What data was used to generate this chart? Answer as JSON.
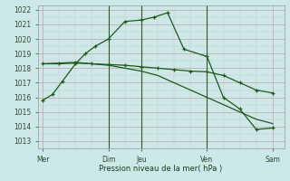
{
  "xlabel": "Pression niveau de la mer( hPa )",
  "background_color": "#cce8e8",
  "grid_color_major": "#c8a0a0",
  "grid_color_minor": "#dcc0c0",
  "line_color": "#1a5c1a",
  "ylim": [
    1012.5,
    1022.3
  ],
  "yticks": [
    1013,
    1014,
    1015,
    1016,
    1017,
    1018,
    1019,
    1020,
    1021,
    1022
  ],
  "xtick_labels": [
    "Mer",
    "",
    "Dim",
    "Jeu",
    "",
    "Ven",
    "",
    "Sam"
  ],
  "xtick_positions": [
    0,
    1,
    2,
    3,
    4,
    5,
    6,
    7
  ],
  "day_labels": [
    "Mer",
    "Dim",
    "Jeu",
    "Ven",
    "Sam"
  ],
  "day_positions": [
    0,
    2,
    3,
    5,
    7
  ],
  "vline_positions": [
    2,
    3,
    5
  ],
  "vline_color": "#2d5a2d",
  "line1_x": [
    0,
    0.3,
    0.6,
    1.0,
    1.3,
    1.6,
    2.0,
    2.5,
    3.0,
    3.4,
    3.8,
    4.3,
    5.0,
    5.5,
    6.0,
    6.5,
    7.0
  ],
  "line1_y": [
    1015.8,
    1016.2,
    1017.1,
    1018.3,
    1019.0,
    1019.5,
    1020.0,
    1021.2,
    1021.3,
    1021.5,
    1021.8,
    1019.3,
    1018.8,
    1016.0,
    1015.2,
    1013.8,
    1013.9
  ],
  "line2_x": [
    0,
    0.5,
    1.0,
    1.5,
    2.0,
    2.5,
    3.0,
    3.5,
    4.0,
    4.5,
    5.0,
    5.5,
    6.0,
    6.5,
    7.0
  ],
  "line2_y": [
    1018.3,
    1018.35,
    1018.4,
    1018.3,
    1018.25,
    1018.2,
    1018.1,
    1018.0,
    1017.9,
    1017.8,
    1017.75,
    1017.5,
    1017.0,
    1016.5,
    1016.3
  ],
  "line3_x": [
    0,
    0.5,
    1.0,
    1.5,
    2.0,
    2.5,
    3.0,
    3.5,
    4.0,
    4.5,
    5.0,
    5.5,
    6.0,
    6.5,
    7.0
  ],
  "line3_y": [
    1018.3,
    1018.3,
    1018.35,
    1018.3,
    1018.2,
    1018.0,
    1017.8,
    1017.5,
    1017.0,
    1016.5,
    1016.0,
    1015.5,
    1015.0,
    1014.5,
    1014.2
  ]
}
